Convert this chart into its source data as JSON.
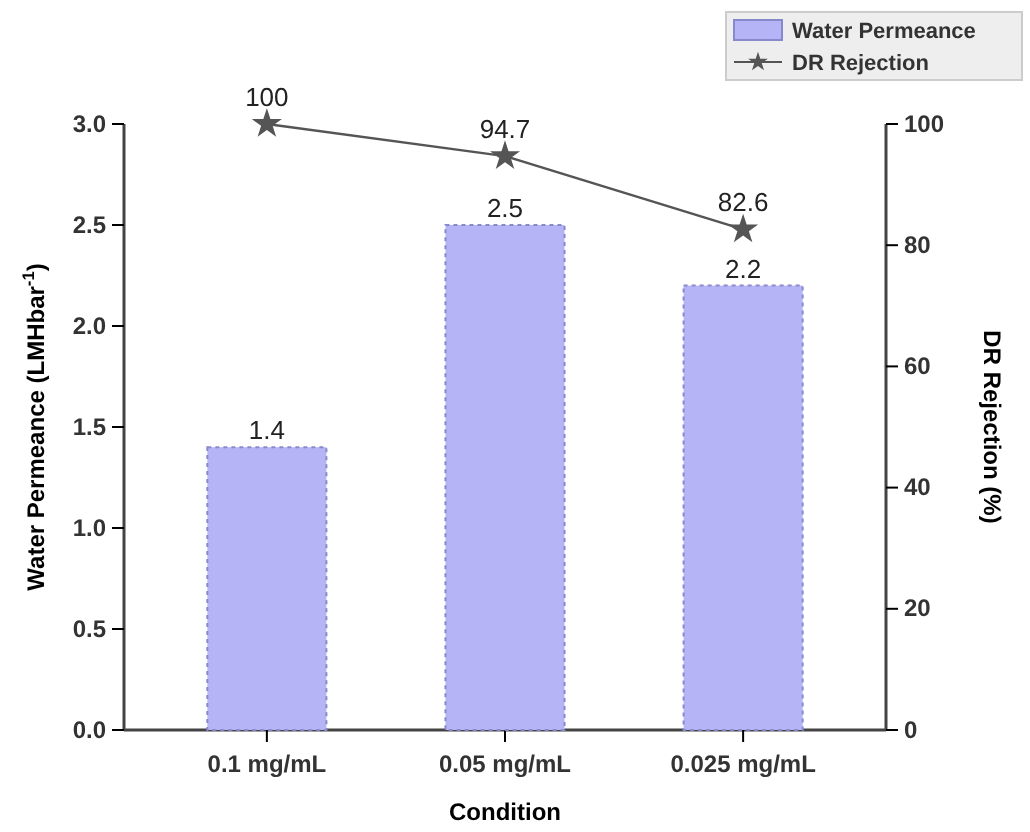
{
  "chart_data": {
    "type": "bar",
    "xlabel": "Condition",
    "ylabel": "Water Permeance (LMHbar$^{-1}$)",
    "y2label": "DR Rejection (%)",
    "categories": [
      "0.1 mg/mL",
      "0.05 mg/mL",
      "0.025 mg/mL"
    ],
    "series": [
      {
        "name": "Water Permeance",
        "color": "#b4b4f6",
        "values": [
          1.4,
          2.5,
          2.2
        ]
      },
      {
        "name": "DR Rejection",
        "type": "line",
        "axis": "y2",
        "color": "#555555",
        "marker": "star",
        "values": [
          100,
          94.7,
          82.6
        ]
      }
    ],
    "ylim": [
      0,
      3
    ],
    "yticks": [
      "0.0",
      "0.5",
      "1.0",
      "1.5",
      "2.0",
      "2.5",
      "3.0"
    ],
    "y2lim": [
      0,
      100
    ],
    "y2ticks": [
      0,
      20,
      40,
      60,
      80,
      100
    ],
    "data_labels": true,
    "legend": "top right",
    "grid": false
  }
}
